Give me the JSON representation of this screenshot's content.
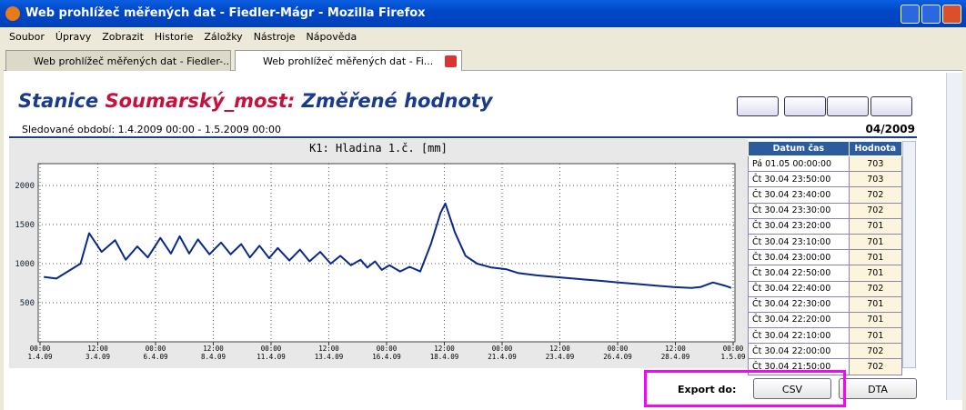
{
  "window": {
    "title": "Web prohlížeč měřených dat - Fiedler-Mágr - Mozilla Firefox"
  },
  "menu": [
    "Soubor",
    "Úpravy",
    "Zobrazit",
    "Historie",
    "Záložky",
    "Nástroje",
    "Nápověda"
  ],
  "tabs": [
    "Web prohlížeč měřených dat - Fiedler-...",
    "Web prohlížeč měřených dat - Fi..."
  ],
  "page": {
    "station_label": "Stanice",
    "station": "Soumarský_most:",
    "heading": "Změřené hodnoty",
    "period": "Sledované období: 1.4.2009 00:00 - 1.5.2009 00:00",
    "month": "04/2009"
  },
  "chart_data": {
    "type": "line",
    "title": "K1: Hladina 1.č. [mm]",
    "color": "#0a2a8a",
    "grid": true,
    "x": [
      "1.4.09 04:00",
      "1.4.09 17:00",
      "2.4.09 18:00",
      "3.4.09 03:00",
      "3.4.09 16:00",
      "4.4.09 06:00",
      "4.4.09 17:00",
      "5.4.09 05:00",
      "5.4.09 16:00",
      "6.4.09 05:00",
      "6.4.09 16:00",
      "7.4.09 01:00",
      "7.4.09 11:00",
      "7.4.09 20:00",
      "8.4.09 08:00",
      "8.4.09 20:00",
      "9.4.09 06:00",
      "9.4.09 17:00",
      "10.4.09 02:00",
      "10.4.09 12:00",
      "10.4.09 22:00",
      "11.4.09 07:00",
      "11.4.09 19:00",
      "12.4.09 06:00",
      "12.4.09 16:00",
      "13.4.09 03:00",
      "13.4.09 14:00",
      "14.4.09 00:00",
      "14.4.09 11:00",
      "14.4.09 21:00",
      "15.4.09 04:00",
      "15.4.09 12:00",
      "15.4.09 19:00",
      "16.4.09 03:00",
      "16.4.09 14:00",
      "17.4.09 00:00",
      "17.4.09 11:00",
      "17.4.09 22:00",
      "18.4.09 08:00",
      "18.4.09 13:00",
      "18.4.09 23:00",
      "19.4.09 10:00",
      "19.4.09 22:00",
      "20.4.09 13:00",
      "21.4.09 04:00",
      "21.4.09 17:00",
      "22.4.09 12:00",
      "23.4.09 16:00",
      "24.4.09 11:00",
      "25.4.09 06:00",
      "26.4.09 01:00",
      "26.4.09 20:00",
      "27.4.09 15:00",
      "28.4.09 10:00",
      "29.4.09 05:00",
      "29.4.09 14:00",
      "30.4.09 03:00",
      "30.4.09 15:00",
      "30.4.09 22:00"
    ],
    "values": [
      830,
      810,
      1000,
      1390,
      1150,
      1300,
      1050,
      1220,
      1080,
      1330,
      1130,
      1350,
      1130,
      1310,
      1120,
      1270,
      1120,
      1250,
      1080,
      1230,
      1070,
      1200,
      1040,
      1180,
      1030,
      1150,
      1000,
      1100,
      980,
      1050,
      950,
      1030,
      920,
      980,
      900,
      960,
      900,
      1250,
      1650,
      1770,
      1400,
      1100,
      1000,
      950,
      930,
      880,
      850,
      820,
      800,
      780,
      760,
      740,
      720,
      700,
      690,
      700,
      760,
      720,
      690
    ],
    "xlim": [
      "1.4.09 00:00",
      "1.5.09 00:00"
    ],
    "xticks": [
      {
        "value": "1.4.09 00:00",
        "label": [
          "00:00",
          "1.4.09"
        ]
      },
      {
        "value": "3.4.09 12:00",
        "label": [
          "12:00",
          "3.4.09"
        ]
      },
      {
        "value": "6.4.09 00:00",
        "label": [
          "00:00",
          "6.4.09"
        ]
      },
      {
        "value": "8.4.09 12:00",
        "label": [
          "12:00",
          "8.4.09"
        ]
      },
      {
        "value": "11.4.09 00:00",
        "label": [
          "00:00",
          "11.4.09"
        ]
      },
      {
        "value": "13.4.09 12:00",
        "label": [
          "12:00",
          "13.4.09"
        ]
      },
      {
        "value": "16.4.09 00:00",
        "label": [
          "00:00",
          "16.4.09"
        ]
      },
      {
        "value": "18.4.09 12:00",
        "label": [
          "12:00",
          "18.4.09"
        ]
      },
      {
        "value": "21.4.09 00:00",
        "label": [
          "00:00",
          "21.4.09"
        ]
      },
      {
        "value": "23.4.09 12:00",
        "label": [
          "12:00",
          "23.4.09"
        ]
      },
      {
        "value": "26.4.09 00:00",
        "label": [
          "00:00",
          "26.4.09"
        ]
      },
      {
        "value": "28.4.09 12:00",
        "label": [
          "12:00",
          "28.4.09"
        ]
      },
      {
        "value": "1.5.09 00:00",
        "label": [
          "00:00",
          "1.5.09"
        ]
      }
    ],
    "ylim": [
      0,
      2280
    ],
    "yticks": [
      500,
      1000,
      1500,
      2000
    ]
  },
  "table": {
    "columns": [
      "Datum čas",
      "Hodnota"
    ],
    "rows": [
      [
        "Pá 01.05 00:00:00",
        "703"
      ],
      [
        "Čt 30.04 23:50:00",
        "703"
      ],
      [
        "Čt 30.04 23:40:00",
        "702"
      ],
      [
        "Čt 30.04 23:30:00",
        "702"
      ],
      [
        "Čt 30.04 23:20:00",
        "701"
      ],
      [
        "Čt 30.04 23:10:00",
        "701"
      ],
      [
        "Čt 30.04 23:00:00",
        "701"
      ],
      [
        "Čt 30.04 22:50:00",
        "701"
      ],
      [
        "Čt 30.04 22:40:00",
        "702"
      ],
      [
        "Čt 30.04 22:30:00",
        "701"
      ],
      [
        "Čt 30.04 22:20:00",
        "701"
      ],
      [
        "Čt 30.04 22:10:00",
        "701"
      ],
      [
        "Čt 30.04 22:00:00",
        "702"
      ],
      [
        "Čt 30.04 21:50:00",
        "702"
      ]
    ]
  },
  "export": {
    "label": "Export do:",
    "buttons": [
      "CSV",
      "DTA"
    ]
  }
}
